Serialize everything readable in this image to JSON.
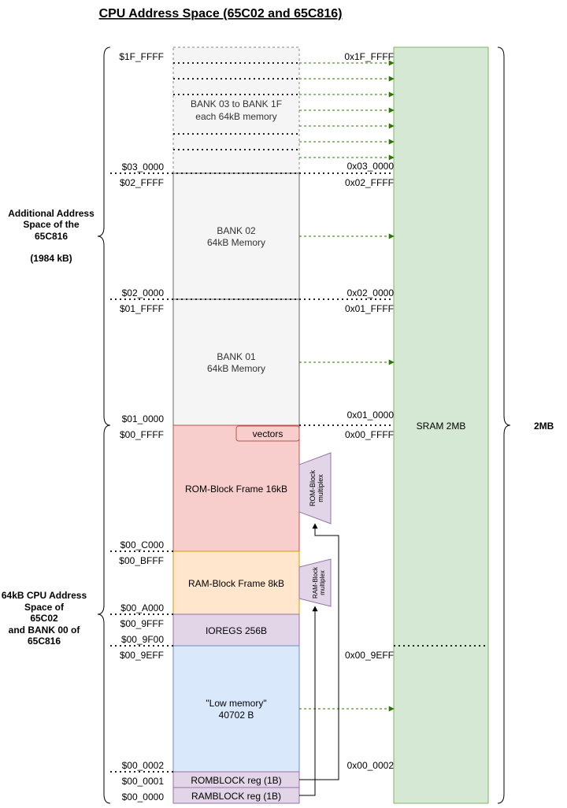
{
  "title": "CPU Address Space (65C02 and 65C816)",
  "cpu_addresses": [
    "$1F_FFFF",
    "$03_0000",
    "$02_FFFF",
    "$02_0000",
    "$01_FFFF",
    "$01_0000",
    "$00_FFFF",
    "$00_C000",
    "$00_BFFF",
    "$00_A000",
    "$00_9FFF",
    "$00_9F00",
    "$00_9EFF",
    "$00_0002",
    "$00_0001",
    "$00_0000"
  ],
  "sram_addresses": [
    "0x1F_FFFF",
    "0x03_0000",
    "0x02_FFFF",
    "0x02_0000",
    "0x01_FFFF",
    "0x01_0000",
    "0x00_FFFF",
    "0x00_9EFF",
    "0x00_0002"
  ],
  "blocks": {
    "bank_03_1f": [
      "BANK 03 to BANK 1F",
      "each 64kB memory"
    ],
    "bank_02": [
      "BANK 02",
      "64kB Memory"
    ],
    "bank_01": [
      "BANK 01",
      "64kB Memory"
    ],
    "vectors": "vectors",
    "rom_frame": "ROM-Block Frame 16kB",
    "ram_frame": "RAM-Block Frame 8kB",
    "ioregs": "IOREGS 256B",
    "low_memory": [
      "\"Low memory\"",
      "40702 B"
    ],
    "romblock_reg": "ROMBLOCK reg (1B)",
    "ramblock_reg": "RAMBLOCK reg (1B)"
  },
  "mux": {
    "rom": [
      "ROM-Block",
      "multiplex"
    ],
    "ram": [
      "RAM-Block",
      "multiplex"
    ]
  },
  "sram_label": "SRAM 2MB",
  "size_label": "2MB",
  "left_labels": {
    "additional": [
      "Additional Address",
      "Space of the",
      "65C816",
      "",
      "(1984 kB)"
    ],
    "cpu64": [
      "64kB CPU Address",
      "Space of",
      "65C02",
      "and BANK 00 of",
      "65C816"
    ]
  },
  "colors": {
    "grey_fill": "#f5f5f5",
    "grey_stroke": "#666666",
    "rom_fill": "#f8cecc",
    "rom_stroke": "#b85450",
    "ram_fill": "#ffe6cc",
    "ram_stroke": "#d79b00",
    "io_fill": "#e1d5e7",
    "io_stroke": "#9673a6",
    "low_fill": "#dae8fc",
    "low_stroke": "#6c8ebf",
    "sram_fill": "#d5e8d4",
    "sram_stroke": "#82b366",
    "arrow_green": "#2d7600"
  }
}
